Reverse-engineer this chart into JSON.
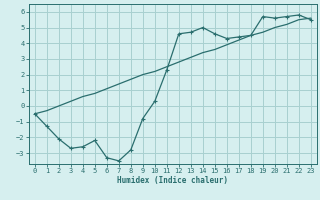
{
  "xlabel": "Humidex (Indice chaleur)",
  "ylabel": "",
  "bg_color": "#d6efef",
  "grid_color": "#a8d0d0",
  "line_color": "#2a6e6e",
  "xlim": [
    -0.5,
    23.5
  ],
  "ylim": [
    -3.7,
    6.5
  ],
  "xticks": [
    0,
    1,
    2,
    3,
    4,
    5,
    6,
    7,
    8,
    9,
    10,
    11,
    12,
    13,
    14,
    15,
    16,
    17,
    18,
    19,
    20,
    21,
    22,
    23
  ],
  "yticks": [
    -3,
    -2,
    -1,
    0,
    1,
    2,
    3,
    4,
    5,
    6
  ],
  "line1_x": [
    0,
    1,
    2,
    3,
    4,
    5,
    6,
    7,
    8,
    9,
    10,
    11,
    12,
    13,
    14,
    15,
    16,
    17,
    18,
    19,
    20,
    21,
    22,
    23
  ],
  "line1_y": [
    -0.5,
    -1.3,
    -2.1,
    -2.7,
    -2.6,
    -2.2,
    -3.3,
    -3.5,
    -2.8,
    -0.8,
    0.3,
    2.3,
    4.6,
    4.7,
    5.0,
    4.6,
    4.3,
    4.4,
    4.5,
    5.7,
    5.6,
    5.7,
    5.8,
    5.5
  ],
  "line2_x": [
    0,
    1,
    2,
    3,
    4,
    5,
    6,
    7,
    8,
    9,
    10,
    11,
    12,
    13,
    14,
    15,
    16,
    17,
    18,
    19,
    20,
    21,
    22,
    23
  ],
  "line2_y": [
    -0.5,
    -0.3,
    0.0,
    0.3,
    0.6,
    0.8,
    1.1,
    1.4,
    1.7,
    2.0,
    2.2,
    2.5,
    2.8,
    3.1,
    3.4,
    3.6,
    3.9,
    4.2,
    4.5,
    4.7,
    5.0,
    5.2,
    5.5,
    5.6
  ]
}
